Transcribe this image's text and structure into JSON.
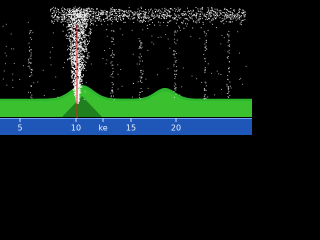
{
  "axis": {
    "labels": [
      "5",
      "10",
      "ke",
      "15",
      "20"
    ]
  }
}
